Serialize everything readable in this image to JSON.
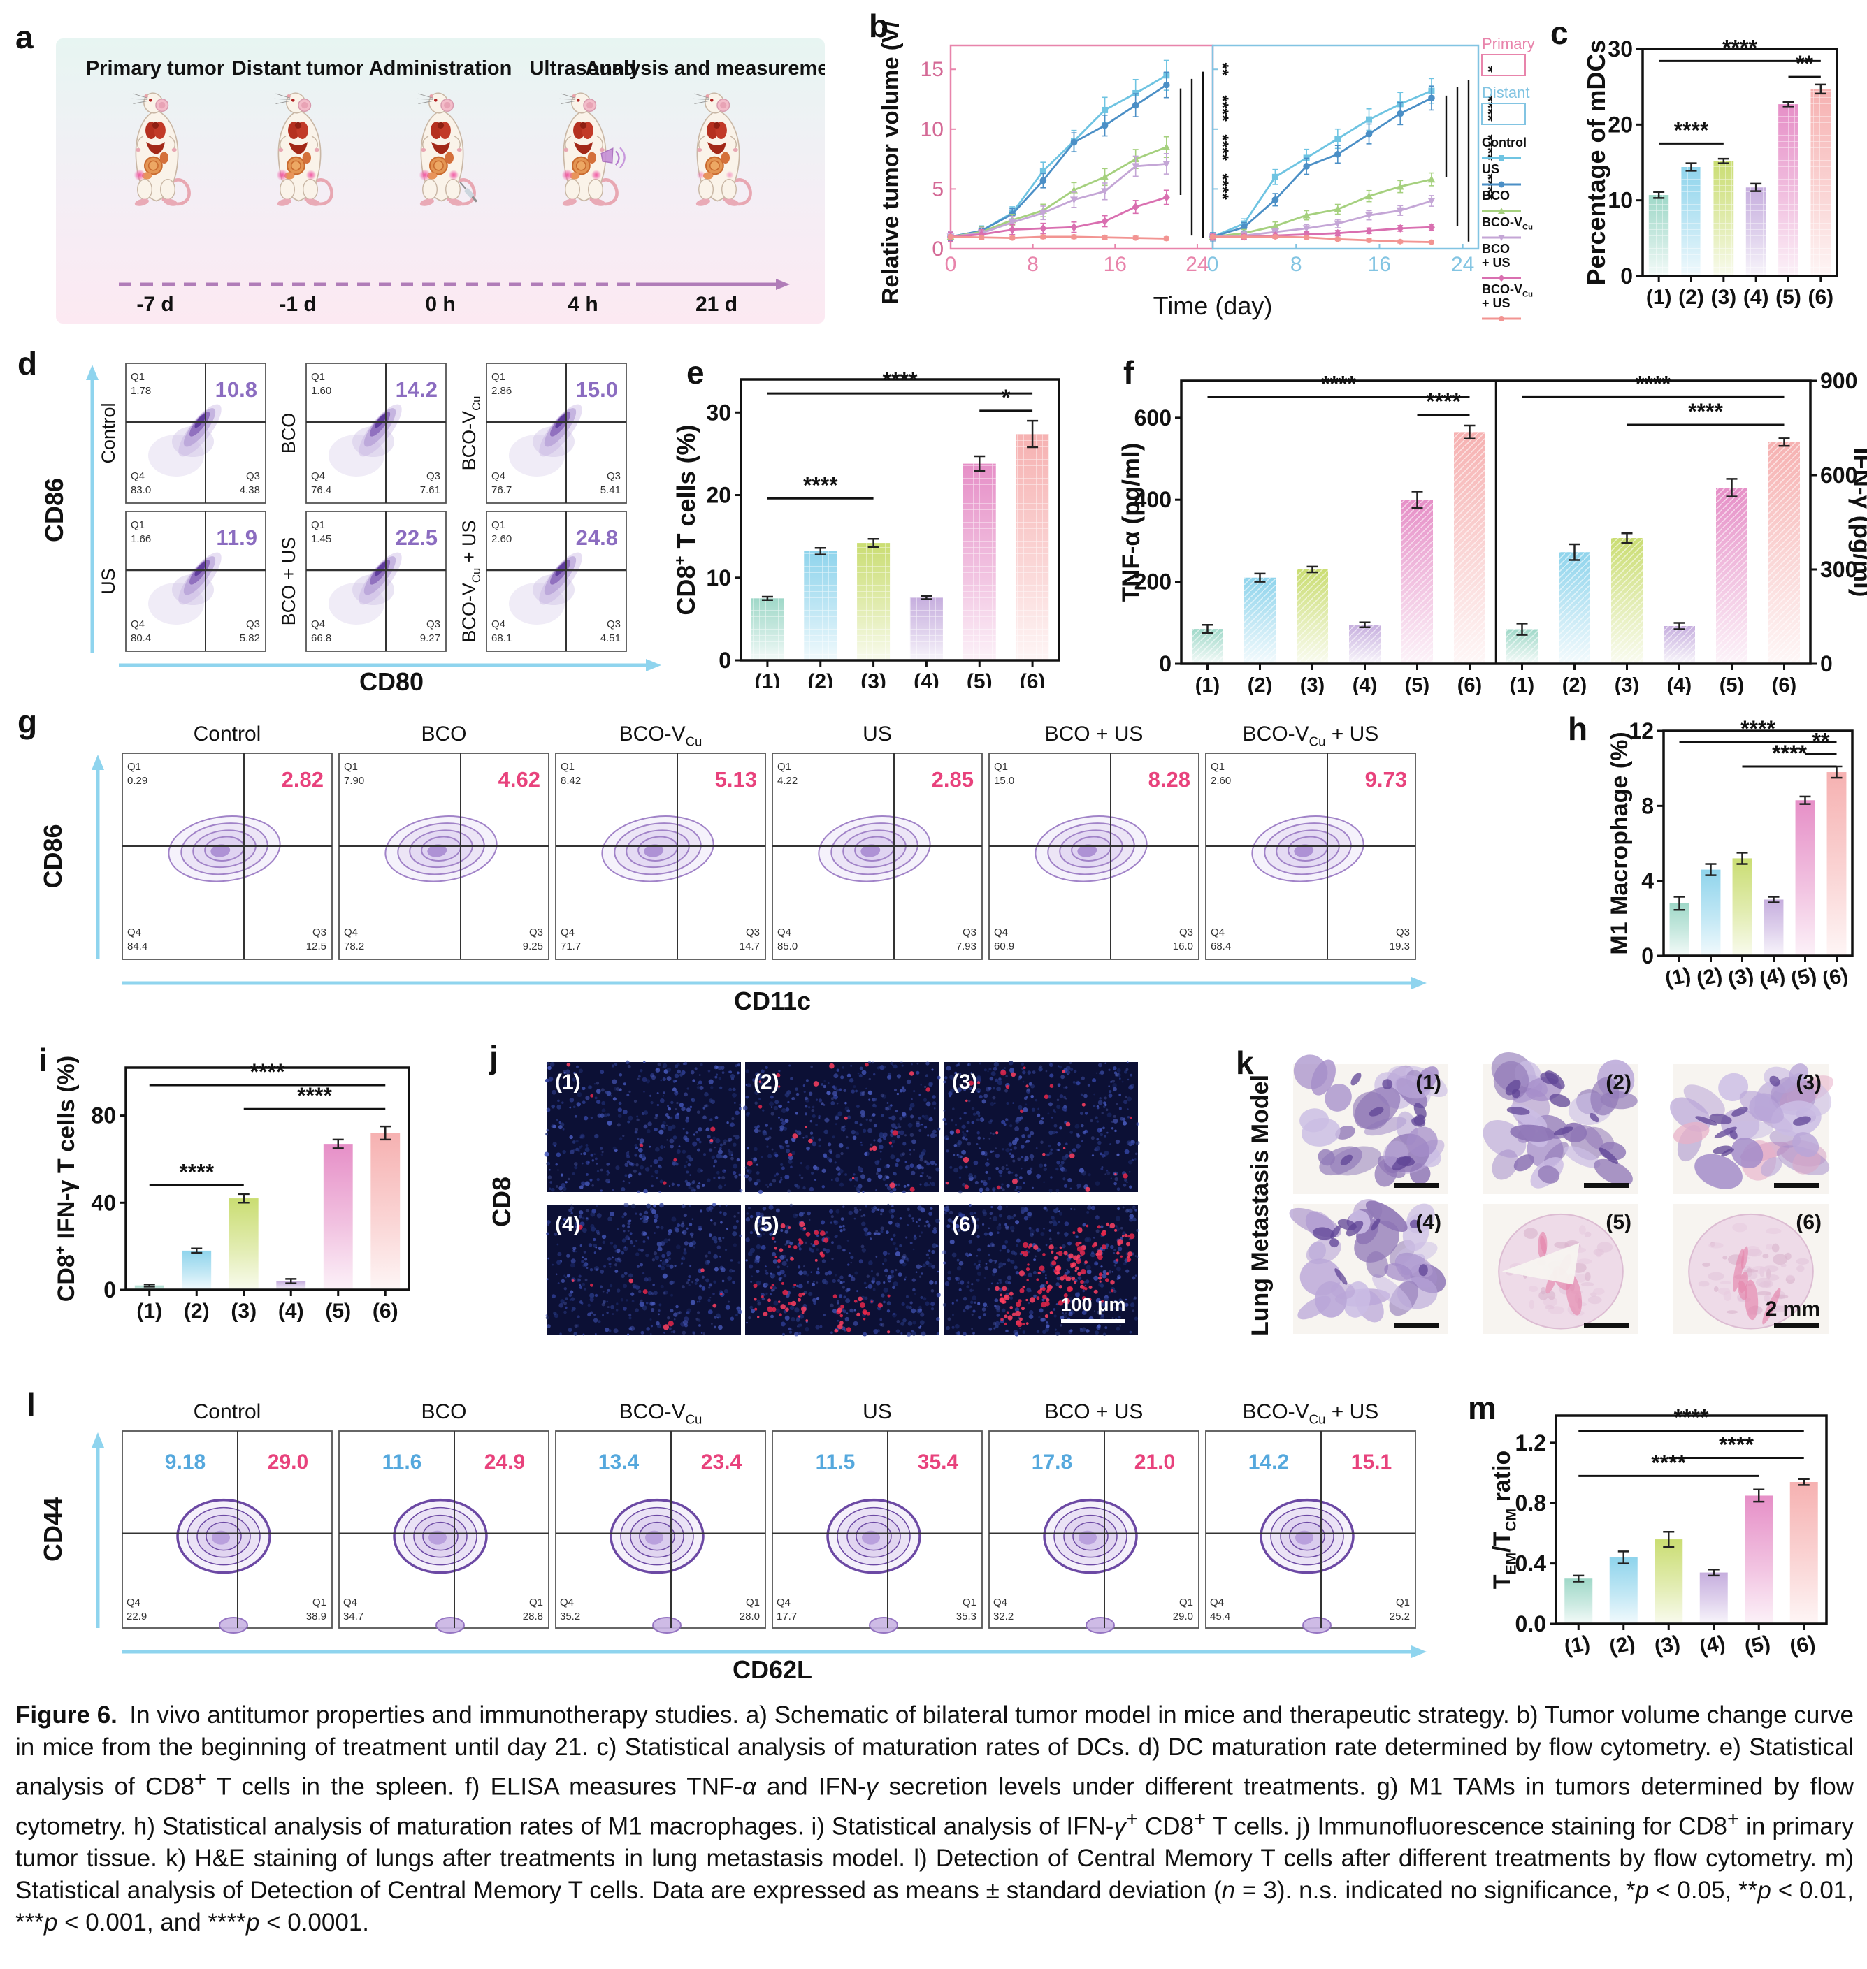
{
  "caption": {
    "html": "<b>Figure 6.</b>&#8194;In vivo antitumor properties and immunotherapy studies. a) Schematic of bilateral tumor model in mice and therapeutic strategy. b) Tumor volume change curve in mice from the beginning of treatment until day 21. c) Statistical analysis of maturation rates of DCs. d) DC maturation rate determined by flow cytometry. e) Statistical analysis of CD8<sup>+</sup> T cells in the spleen. f) ELISA measures TNF-<i>&#945;</i> and IFN-<i>&#947;</i> secretion levels under different treatments. g) M1 TAMs in tumors determined by flow cytometry. h) Statistical analysis of maturation rates of M1 macrophages. i) Statistical analysis of IFN-<i>&#947;</i><sup>+</sup> CD8<sup>+</sup> T cells. j) Immunofluorescence staining for CD8<sup>+</sup> in primary tumor tissue. k) H&amp;E staining of lungs after treatments in lung metastasis model. l) Detection of Central Memory T cells after different treatments by flow cytometry. m) Statistical analysis of Detection of Central Memory T cells. Data are expressed as means &#177; standard deviation (<i>n</i> = 3). n.s. indicated no significance, *<i>p</i> &lt; 0.05, **<i>p</i> &lt; 0.01, ***<i>p</i> &lt; 0.001, and ****<i>p</i> &lt; 0.0001."
  },
  "colors": {
    "series": [
      "#6fc4e2",
      "#4b8fc6",
      "#a5d07e",
      "#c4a6d6",
      "#d96fb0",
      "#f29492"
    ],
    "bars": [
      "#9fd8c8",
      "#8fd4ec",
      "#cadd72",
      "#c6aede",
      "#e68fc7",
      "#f6b1b1"
    ],
    "primary_frame": "#e884ab",
    "distant_frame": "#82c4e2",
    "flow_big_purple": "#8b6cc0",
    "flow_big_pink": "#e8427c",
    "flow_big_blue": "#55a8dd",
    "blob_stroke": "#7a5cab"
  },
  "groups": [
    {
      "label_parts": [
        {
          "t": "Control"
        }
      ]
    },
    {
      "label_parts": [
        {
          "t": "US"
        }
      ]
    },
    {
      "label_parts": [
        {
          "t": "BCO"
        }
      ]
    },
    {
      "label_parts": [
        {
          "t": "BCO-V"
        },
        {
          "t": "Cu",
          "sub": true
        }
      ]
    },
    {
      "label_parts": [
        {
          "t": "BCO + US"
        }
      ]
    },
    {
      "label_parts": [
        {
          "t": "BCO-V"
        },
        {
          "t": "Cu",
          "sub": true
        },
        {
          "t": " + US"
        }
      ]
    }
  ],
  "panel_a": {
    "letter": "a",
    "stages": [
      {
        "label": "Primary tumor",
        "time": "-7 d",
        "extras": [
          "tumor_primary"
        ]
      },
      {
        "label": "Distant tumor",
        "time": "-1 d",
        "extras": [
          "tumor_primary",
          "tumor_distant"
        ]
      },
      {
        "label": "Administration",
        "time": "0 h",
        "extras": [
          "tumor_primary",
          "tumor_distant",
          "syringe"
        ]
      },
      {
        "label": "Ultrasound",
        "time": "4 h",
        "extras": [
          "tumor_primary",
          "tumor_distant",
          "ultrasound"
        ]
      },
      {
        "label": "Analysis and measurement",
        "time": "21 d",
        "extras": [
          "tumor_primary_faded",
          "tumor_distant_faded"
        ]
      }
    ]
  },
  "panel_b": {
    "letter": "b",
    "ylabel_parts": [
      {
        "t": "Relative tumor volume (V/V"
      },
      {
        "t": "0",
        "sub": true
      },
      {
        "t": ")"
      }
    ],
    "xlabel": "Time (day)",
    "xticks": [
      0,
      8,
      16,
      24
    ],
    "yticks": [
      0,
      5,
      10,
      15
    ],
    "legend": {
      "primary": "Primary",
      "distant": "Distant",
      "entries": [
        {
          "lines": [
            [
              {
                "t": "Control"
              }
            ]
          ]
        },
        {
          "lines": [
            [
              {
                "t": "US"
              }
            ]
          ]
        },
        {
          "lines": [
            [
              {
                "t": "BCO"
              }
            ]
          ]
        },
        {
          "lines": [
            [
              {
                "t": "BCO-V"
              },
              {
                "t": "Cu",
                "sub": true
              }
            ]
          ]
        },
        {
          "lines": [
            [
              {
                "t": "BCO"
              }
            ],
            [
              {
                "t": "+ US"
              }
            ]
          ]
        },
        {
          "lines": [
            [
              {
                "t": "BCO-V"
              },
              {
                "t": "Cu",
                "sub": true
              }
            ],
            [
              {
                "t": "+ US"
              }
            ]
          ]
        }
      ]
    },
    "sig_primary": [
      "**",
      "****",
      "****",
      "****"
    ],
    "sig_distant": [
      "*",
      "****",
      "****",
      "****"
    ]
  },
  "chart_data": [
    {
      "id": "b_primary",
      "type": "line",
      "title": "Primary",
      "x": [
        0,
        3,
        6,
        9,
        12,
        15,
        18,
        21
      ],
      "ylim": [
        0,
        17
      ],
      "series": [
        {
          "name": "Control",
          "values": [
            1,
            1.5,
            3.0,
            6.5,
            9.0,
            11.6,
            13.0,
            14.5
          ],
          "err": 0.9
        },
        {
          "name": "US",
          "values": [
            1,
            1.5,
            2.9,
            5.7,
            8.9,
            10.3,
            12.0,
            13.7
          ],
          "err": 0.8
        },
        {
          "name": "BCO",
          "values": [
            1,
            1.4,
            2.4,
            3.2,
            4.9,
            6.0,
            7.5,
            8.5
          ],
          "err": 0.9
        },
        {
          "name": "BCO-VCu",
          "values": [
            1,
            1.3,
            2.2,
            3.0,
            4.1,
            4.8,
            6.9,
            7.1
          ],
          "err": 1.0
        },
        {
          "name": "BCO + US",
          "values": [
            1,
            1.2,
            1.6,
            1.7,
            1.8,
            2.3,
            3.5,
            4.3
          ],
          "err": 0.9
        },
        {
          "name": "BCO-VCu + US",
          "values": [
            1,
            0.95,
            0.9,
            1.0,
            1.0,
            0.95,
            0.9,
            0.85
          ],
          "err": 0.35
        }
      ]
    },
    {
      "id": "b_distant",
      "type": "line",
      "title": "Distant",
      "x": [
        0,
        3,
        6,
        9,
        12,
        15,
        18,
        21
      ],
      "ylim": [
        0,
        17
      ],
      "series": [
        {
          "name": "Control",
          "values": [
            1,
            2.1,
            6.0,
            7.6,
            9.2,
            10.8,
            12.1,
            13.2
          ],
          "err": 0.8
        },
        {
          "name": "US",
          "values": [
            1,
            1.8,
            4.1,
            6.9,
            7.9,
            9.6,
            11.3,
            12.6
          ],
          "err": 0.8
        },
        {
          "name": "BCO",
          "values": [
            1,
            1.3,
            1.9,
            2.8,
            3.3,
            4.4,
            5.2,
            5.8
          ],
          "err": 0.7
        },
        {
          "name": "BCO-VCu",
          "values": [
            1,
            1.1,
            1.4,
            1.7,
            2.1,
            2.8,
            3.2,
            4.0
          ],
          "err": 0.7
        },
        {
          "name": "BCO + US",
          "values": [
            1,
            1.0,
            1.1,
            1.2,
            1.3,
            1.5,
            1.7,
            1.8
          ],
          "err": 0.5
        },
        {
          "name": "BCO-VCu + US",
          "values": [
            1,
            1.0,
            1.0,
            0.95,
            0.8,
            0.7,
            0.6,
            0.55
          ],
          "err": 0.3
        }
      ]
    },
    {
      "id": "c",
      "type": "bar",
      "categories": [
        "(1)",
        "(2)",
        "(3)",
        "(4)",
        "(5)",
        "(6)"
      ],
      "values": [
        10.7,
        14.4,
        15.2,
        11.7,
        22.7,
        24.7
      ],
      "errors": [
        0.4,
        0.5,
        0.3,
        0.5,
        0.3,
        0.6
      ],
      "ylabel": "Percentage of mDCs",
      "ylim": [
        0,
        30
      ],
      "yticks": [
        0,
        10,
        20,
        30
      ],
      "sig": [
        {
          "a": 1,
          "b": 6,
          "s": "****",
          "y": 28.4
        },
        {
          "a": 5,
          "b": 6,
          "s": "**",
          "y": 26.3
        },
        {
          "a": 1,
          "b": 3,
          "s": "****",
          "y": 17.5
        }
      ]
    },
    {
      "id": "e",
      "type": "bar",
      "categories": [
        "(1)",
        "(2)",
        "(3)",
        "(4)",
        "(5)",
        "(6)"
      ],
      "values": [
        7.5,
        13.2,
        14.2,
        7.6,
        23.8,
        27.4
      ],
      "errors": [
        0.2,
        0.4,
        0.5,
        0.2,
        0.9,
        1.6
      ],
      "ylabel_parts": [
        {
          "t": "CD8"
        },
        {
          "t": "+",
          "sup": true
        },
        {
          "t": " T cells (%)"
        }
      ],
      "ylim": [
        0,
        34
      ],
      "yticks": [
        0,
        10,
        20,
        30
      ],
      "sig": [
        {
          "a": 1,
          "b": 6,
          "s": "****",
          "y": 32.3
        },
        {
          "a": 5,
          "b": 6,
          "s": "*",
          "y": 30.2
        },
        {
          "a": 1,
          "b": 3,
          "s": "****",
          "y": 19.6
        }
      ]
    },
    {
      "id": "f",
      "type": "bar-dual",
      "categories": [
        "(1)",
        "(2)",
        "(3)",
        "(4)",
        "(5)",
        "(6)"
      ],
      "left": {
        "ylabel": "TNF-α (pg/ml)",
        "values": [
          85,
          210,
          230,
          95,
          400,
          565
        ],
        "errors": [
          10,
          10,
          7,
          6,
          20,
          16
        ],
        "ymax": 690,
        "yticks": [
          0,
          200,
          400,
          600
        ],
        "sig": [
          {
            "a": 1,
            "b": 6,
            "s": "****",
            "y": 650
          },
          {
            "a": 5,
            "b": 6,
            "s": "****",
            "y": 607
          }
        ]
      },
      "right": {
        "ylabel": "IFN-γ (pg/ml)",
        "values": [
          110,
          355,
          400,
          120,
          560,
          705
        ],
        "errors": [
          18,
          25,
          15,
          10,
          28,
          12
        ],
        "ymax": 900,
        "yticks": [
          0,
          300,
          600,
          900
        ],
        "sig": [
          {
            "a": 1,
            "b": 6,
            "s": "****",
            "y": 848
          },
          {
            "a": 3,
            "b": 6,
            "s": "****",
            "y": 760
          }
        ]
      }
    },
    {
      "id": "h",
      "type": "bar",
      "categories": [
        "(1)",
        "(2)",
        "(3)",
        "(4)",
        "(5)",
        "(6)"
      ],
      "values": [
        2.8,
        4.6,
        5.2,
        3.0,
        8.3,
        9.8
      ],
      "errors": [
        0.35,
        0.3,
        0.3,
        0.15,
        0.2,
        0.3
      ],
      "ylabel": "M1 Macrophage (%)",
      "ylim": [
        0,
        12
      ],
      "yticks": [
        0,
        4,
        8,
        12
      ],
      "sig": [
        {
          "a": 1,
          "b": 6,
          "s": "****",
          "y": 11.4
        },
        {
          "a": 5,
          "b": 6,
          "s": "**",
          "y": 10.75
        },
        {
          "a": 3,
          "b": 6,
          "s": "****",
          "y": 10.1
        }
      ]
    },
    {
      "id": "i",
      "type": "bar",
      "categories": [
        "(1)",
        "(2)",
        "(3)",
        "(4)",
        "(5)",
        "(6)"
      ],
      "values": [
        2,
        18,
        42,
        4,
        67,
        72
      ],
      "errors": [
        0.5,
        1,
        2,
        1,
        2,
        3
      ],
      "ylabel_parts": [
        {
          "t": "CD8"
        },
        {
          "t": "+",
          "sup": true
        },
        {
          "t": " IFN-γ T cells (%)"
        }
      ],
      "ylim": [
        0,
        102
      ],
      "yticks": [
        0,
        40,
        80
      ],
      "sig": [
        {
          "a": 1,
          "b": 6,
          "s": "****",
          "y": 94
        },
        {
          "a": 3,
          "b": 6,
          "s": "****",
          "y": 83
        },
        {
          "a": 1,
          "b": 3,
          "s": "****",
          "y": 48
        }
      ]
    },
    {
      "id": "m",
      "type": "bar",
      "categories": [
        "(1)",
        "(2)",
        "(3)",
        "(4)",
        "(5)",
        "(6)"
      ],
      "values": [
        0.3,
        0.44,
        0.56,
        0.34,
        0.85,
        0.94
      ],
      "errors": [
        0.02,
        0.04,
        0.05,
        0.02,
        0.04,
        0.02
      ],
      "ylabel_parts": [
        {
          "t": "T"
        },
        {
          "t": "EM",
          "sub": true
        },
        {
          "t": "/T"
        },
        {
          "t": "CM",
          "sub": true
        },
        {
          "t": " ratio"
        }
      ],
      "ylim": [
        0,
        1.38
      ],
      "yticks": [
        0,
        0.4,
        0.8,
        1.2
      ],
      "ydec": 1,
      "sig": [
        {
          "a": 1,
          "b": 6,
          "s": "****",
          "y": 1.28
        },
        {
          "a": 3,
          "b": 6,
          "s": "****",
          "y": 1.1
        },
        {
          "a": 1,
          "b": 5,
          "s": "****",
          "y": 0.98
        }
      ]
    }
  ],
  "panel_c": {
    "letter": "c"
  },
  "panel_d": {
    "letter": "d",
    "ylabel": "CD86",
    "xlabel": "CD80",
    "plots": [
      {
        "g": 0,
        "q1": "1.78",
        "big": "10.8",
        "q4": "83.0",
        "q3": "4.38"
      },
      {
        "g": 2,
        "q1": "1.60",
        "big": "14.2",
        "q4": "76.4",
        "q3": "7.61"
      },
      {
        "g": 3,
        "q1": "2.86",
        "big": "15.0",
        "q4": "76.7",
        "q3": "5.41"
      },
      {
        "g": 1,
        "q1": "1.66",
        "big": "11.9",
        "q4": "80.4",
        "q3": "5.82"
      },
      {
        "g": 4,
        "q1": "1.45",
        "big": "22.5",
        "q4": "66.8",
        "q3": "9.27"
      },
      {
        "g": 5,
        "q1": "2.60",
        "big": "24.8",
        "q4": "68.1",
        "q3": "4.51"
      }
    ]
  },
  "panel_e": {
    "letter": "e"
  },
  "panel_f": {
    "letter": "f"
  },
  "panel_g": {
    "letter": "g",
    "ylabel": "CD86",
    "xlabel": "CD11c",
    "plots": [
      {
        "g": 0,
        "q1": "0.29",
        "big": "2.82",
        "q4": "84.4",
        "q3": "12.5"
      },
      {
        "g": 2,
        "q1": "7.90",
        "big": "4.62",
        "q4": "78.2",
        "q3": "9.25"
      },
      {
        "g": 3,
        "q1": "8.42",
        "big": "5.13",
        "q4": "71.7",
        "q3": "14.7"
      },
      {
        "g": 1,
        "q1": "4.22",
        "big": "2.85",
        "q4": "85.0",
        "q3": "7.93"
      },
      {
        "g": 4,
        "q1": "15.0",
        "big": "8.28",
        "q4": "60.9",
        "q3": "16.0"
      },
      {
        "g": 5,
        "q1": "2.60",
        "big": "9.73",
        "q4": "68.4",
        "q3": "19.3"
      }
    ]
  },
  "panel_h": {
    "letter": "h"
  },
  "panel_i": {
    "letter": "i"
  },
  "panel_j": {
    "letter": "j",
    "ylabel": "CD8",
    "labels": [
      "(1)",
      "(2)",
      "(3)",
      "(4)",
      "(5)",
      "(6)"
    ],
    "scale_label": "100 μm"
  },
  "panel_k": {
    "letter": "k",
    "ylabel": "Lung Metastasis Model",
    "labels": [
      "(1)",
      "(2)",
      "(3)",
      "(4)",
      "(5)",
      "(6)"
    ],
    "scale_label": "2 mm"
  },
  "panel_l": {
    "letter": "l",
    "ylabel": "CD44",
    "xlabel": "CD62L",
    "plots": [
      {
        "g": 0,
        "blue": "9.18",
        "pink": "29.0",
        "q4": "22.9",
        "q1": "38.9"
      },
      {
        "g": 2,
        "blue": "11.6",
        "pink": "24.9",
        "q4": "34.7",
        "q1": "28.8"
      },
      {
        "g": 3,
        "blue": "13.4",
        "pink": "23.4",
        "q4": "35.2",
        "q1": "28.0"
      },
      {
        "g": 1,
        "blue": "11.5",
        "pink": "35.4",
        "q4": "17.7",
        "q1": "35.3"
      },
      {
        "g": 4,
        "blue": "17.8",
        "pink": "21.0",
        "q4": "32.2",
        "q1": "29.0"
      },
      {
        "g": 5,
        "blue": "14.2",
        "pink": "15.1",
        "q4": "45.4",
        "q1": "25.2"
      }
    ]
  },
  "panel_m": {
    "letter": "m"
  }
}
